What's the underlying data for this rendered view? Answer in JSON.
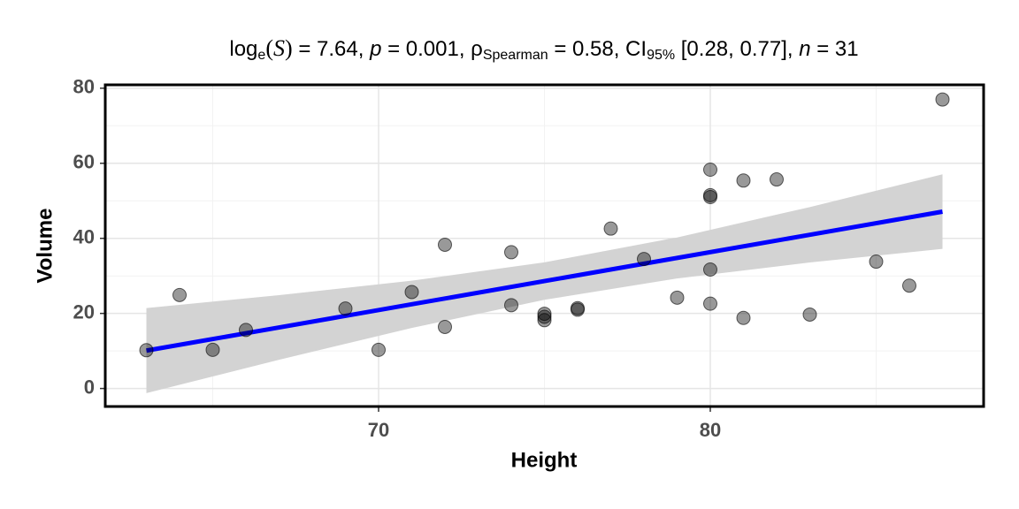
{
  "chart_data": {
    "type": "scatter",
    "title": [
      "log",
      "e",
      "(",
      "S",
      ")",
      " = 7.64, ",
      "p",
      " = 0.001, ",
      "ρ",
      "Spearman",
      " = 0.58, CI",
      "95%",
      " [0.28, 0.77], ",
      "n",
      " = 31"
    ],
    "x_label": "Height",
    "y_label": "Volume",
    "xlim": [
      61.76,
      88.24
    ],
    "ylim": [
      -4.8,
      80.9
    ],
    "xticks": [
      70,
      80
    ],
    "yticks": [
      0,
      20,
      40,
      60,
      80
    ],
    "xminor": [
      65,
      75,
      85
    ],
    "yminor": [
      10,
      30,
      50,
      70
    ],
    "grid": true,
    "series": [
      {
        "color": "#000000",
        "x": [
          70,
          65,
          63,
          72,
          81,
          83,
          66,
          75,
          80,
          75,
          79,
          76,
          76,
          69,
          75,
          74,
          85,
          86,
          71,
          64,
          78,
          80,
          74,
          72,
          77,
          81,
          82,
          80,
          80,
          80,
          87
        ],
        "values": [
          10.3,
          10.3,
          10.2,
          16.4,
          18.8,
          19.7,
          15.6,
          18.2,
          22.6,
          19.9,
          24.2,
          21.0,
          21.4,
          21.3,
          19.1,
          22.2,
          33.8,
          27.4,
          25.7,
          24.9,
          34.5,
          31.7,
          36.3,
          38.3,
          42.6,
          55.4,
          55.7,
          58.3,
          51.5,
          51.0,
          77.0
        ]
      }
    ],
    "fit": {
      "color": "#0000ff",
      "band_color": "#d3d3d3",
      "x": [
        63,
        67,
        71,
        75,
        79,
        83,
        87
      ],
      "values": [
        10.09,
        16.26,
        22.43,
        28.61,
        34.78,
        40.95,
        47.12
      ],
      "lower": [
        -1.24,
        7.65,
        16.13,
        23.62,
        29.32,
        33.57,
        37.19
      ],
      "upper": [
        21.42,
        24.87,
        28.73,
        33.6,
        40.24,
        48.33,
        57.05
      ]
    }
  }
}
